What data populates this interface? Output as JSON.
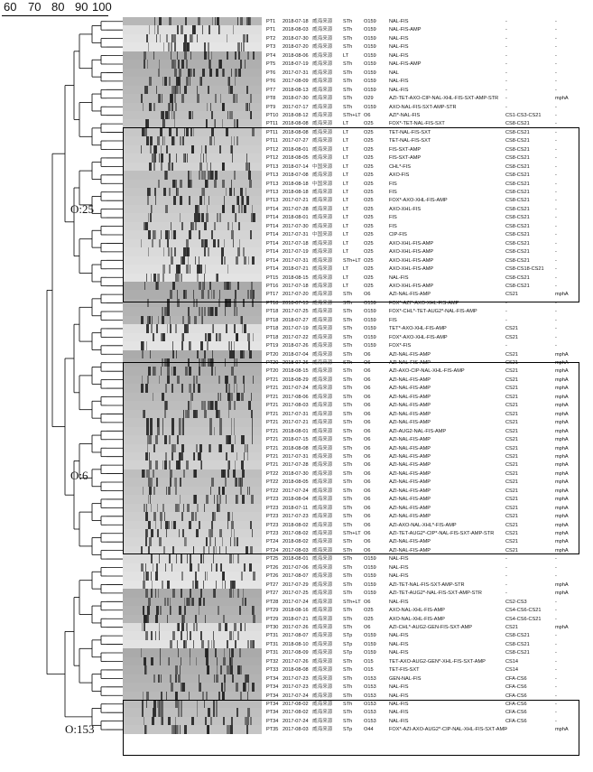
{
  "scale": {
    "ticks": [
      "60",
      "70",
      "80",
      "90",
      "100"
    ]
  },
  "cluster_labels": [
    "O:25",
    "O:6",
    "O:153"
  ],
  "rows": [
    {
      "pt": "PT1",
      "date": "2018-07-18",
      "loc": "威海来源",
      "st": "STh",
      "o": "O159",
      "res": "NAL-FIS",
      "cs": "-",
      "gene": "-"
    },
    {
      "pt": "PT1",
      "date": "2018-08-03",
      "loc": "威海来源",
      "st": "STh",
      "o": "O159",
      "res": "NAL-FIS-AMP",
      "cs": "-",
      "gene": "-"
    },
    {
      "pt": "PT2",
      "date": "2018-07-30",
      "loc": "威海来源",
      "st": "STh",
      "o": "O159",
      "res": "NAL-FIS",
      "cs": "-",
      "gene": "-"
    },
    {
      "pt": "PT3",
      "date": "2018-07-20",
      "loc": "威海来源",
      "st": "STh",
      "o": "O159",
      "res": "NAL-FIS",
      "cs": "-",
      "gene": "-"
    },
    {
      "pt": "PT4",
      "date": "2018-08-06",
      "loc": "威海来源",
      "st": "LT",
      "o": "O159",
      "res": "NAL-FIS",
      "cs": "-",
      "gene": "-"
    },
    {
      "pt": "PT5",
      "date": "2018-07-19",
      "loc": "威海来源",
      "st": "STh",
      "o": "O159",
      "res": "NAL-FIS-AMP",
      "cs": "-",
      "gene": "-"
    },
    {
      "pt": "PT6",
      "date": "2017-07-31",
      "loc": "威海来源",
      "st": "STh",
      "o": "O159",
      "res": "NAL",
      "cs": "-",
      "gene": "-"
    },
    {
      "pt": "PT6",
      "date": "2017-08-09",
      "loc": "威海来源",
      "st": "STh",
      "o": "O159",
      "res": "NAL-FIS",
      "cs": "-",
      "gene": "-"
    },
    {
      "pt": "PT7",
      "date": "2018-08-13",
      "loc": "威海来源",
      "st": "STh",
      "o": "O159",
      "res": "NAL-FIS",
      "cs": "-",
      "gene": "-"
    },
    {
      "pt": "PT8",
      "date": "2018-07-30",
      "loc": "威海来源",
      "st": "STh",
      "o": "O29",
      "res": "AZI-TET-AXO-CIP-NAL-XHL-FIS-SXT-AMP-STR",
      "cs": "-",
      "gene": "mphA"
    },
    {
      "pt": "PT9",
      "date": "2017-07-17",
      "loc": "威海来源",
      "st": "STh",
      "o": "O159",
      "res": "AXO-NAL-FIS-SXT-AMP-STR",
      "cs": "-",
      "gene": "-"
    },
    {
      "pt": "PT10",
      "date": "2018-08-12",
      "loc": "威海来源",
      "st": "STh+LT",
      "o": "O6",
      "res": "AZI*-NAL-FIS",
      "cs": "CS1-CS3-CS21",
      "gene": "-"
    },
    {
      "pt": "PT11",
      "date": "2018-08-08",
      "loc": "威海来源",
      "st": "LT",
      "o": "O25",
      "res": "FOX*-TET-NAL-FIS-SXT",
      "cs": "CS8-CS21",
      "gene": "-"
    },
    {
      "pt": "PT11",
      "date": "2018-08-08",
      "loc": "威海来源",
      "st": "LT",
      "o": "O25",
      "res": "TET-NAL-FIS-SXT",
      "cs": "CS8-CS21",
      "gene": "-"
    },
    {
      "pt": "PT11",
      "date": "2017-07-27",
      "loc": "威海来源",
      "st": "LT",
      "o": "O25",
      "res": "TET-NAL-FIS-SXT",
      "cs": "CS8-CS21",
      "gene": "-"
    },
    {
      "pt": "PT12",
      "date": "2018-08-01",
      "loc": "威海来源",
      "st": "LT",
      "o": "O25",
      "res": "FIS-SXT-AMP",
      "cs": "CS8-CS21",
      "gene": "-"
    },
    {
      "pt": "PT12",
      "date": "2018-08-05",
      "loc": "威海来源",
      "st": "LT",
      "o": "O25",
      "res": "FIS-SXT-AMP",
      "cs": "CS8-CS21",
      "gene": "-"
    },
    {
      "pt": "PT13",
      "date": "2018-07-14",
      "loc": "中国来源",
      "st": "LT",
      "o": "O25",
      "res": "CHL*-FIS",
      "cs": "CS8-CS21",
      "gene": "-"
    },
    {
      "pt": "PT13",
      "date": "2018-07-08",
      "loc": "威海来源",
      "st": "LT",
      "o": "O25",
      "res": "AXO-FIS",
      "cs": "CS8-CS21",
      "gene": "-"
    },
    {
      "pt": "PT13",
      "date": "2018-08-18",
      "loc": "中国来源",
      "st": "LT",
      "o": "O25",
      "res": "FIS",
      "cs": "CS8-CS21",
      "gene": "-"
    },
    {
      "pt": "PT13",
      "date": "2018-08-18",
      "loc": "威海来源",
      "st": "LT",
      "o": "O25",
      "res": "FIS",
      "cs": "CS8-CS21",
      "gene": "-"
    },
    {
      "pt": "PT13",
      "date": "2017-07-21",
      "loc": "威海来源",
      "st": "LT",
      "o": "O25",
      "res": "FOX*-AXO-XHL-FIS-AMP",
      "cs": "CS8-CS21",
      "gene": "-"
    },
    {
      "pt": "PT14",
      "date": "2017-07-28",
      "loc": "威海来源",
      "st": "LT",
      "o": "O25",
      "res": "AXO-XHL-FIS",
      "cs": "CS8-CS21",
      "gene": "-"
    },
    {
      "pt": "PT14",
      "date": "2018-08-01",
      "loc": "威海来源",
      "st": "LT",
      "o": "O25",
      "res": "FIS",
      "cs": "CS8-CS21",
      "gene": "-"
    },
    {
      "pt": "PT14",
      "date": "2017-07-30",
      "loc": "威海来源",
      "st": "LT",
      "o": "O25",
      "res": "FIS",
      "cs": "CS8-CS21",
      "gene": "-"
    },
    {
      "pt": "PT14",
      "date": "2017-07-31",
      "loc": "中国来源",
      "st": "LT",
      "o": "O25",
      "res": "CIP-FIS",
      "cs": "CS8-CS21",
      "gene": "-"
    },
    {
      "pt": "PT14",
      "date": "2017-07-18",
      "loc": "威海来源",
      "st": "LT",
      "o": "O25",
      "res": "AXO-XHL-FIS-AMP",
      "cs": "CS8-CS21",
      "gene": "-"
    },
    {
      "pt": "PT14",
      "date": "2017-07-19",
      "loc": "威海来源",
      "st": "LT",
      "o": "O25",
      "res": "AXO-XHL-FIS-AMP",
      "cs": "CS8-CS21",
      "gene": "-"
    },
    {
      "pt": "PT14",
      "date": "2017-07-31",
      "loc": "威海来源",
      "st": "STh+LT",
      "o": "O25",
      "res": "AXO-XHL-FIS-AMP",
      "cs": "CS8-CS21",
      "gene": "-"
    },
    {
      "pt": "PT14",
      "date": "2018-07-21",
      "loc": "威海来源",
      "st": "LT",
      "o": "O25",
      "res": "AXO-XHL-FIS-AMP",
      "cs": "CS8-CS18-CS21",
      "gene": "-"
    },
    {
      "pt": "PT15",
      "date": "2018-08-15",
      "loc": "威海来源",
      "st": "LT",
      "o": "O25",
      "res": "NAL-FIS",
      "cs": "CS8-CS21",
      "gene": "-"
    },
    {
      "pt": "PT16",
      "date": "2017-07-18",
      "loc": "威海来源",
      "st": "LT",
      "o": "O25",
      "res": "AXO-XHL-FIS-AMP",
      "cs": "CS8-CS21",
      "gene": "-"
    },
    {
      "pt": "PT17",
      "date": "2017-07-20",
      "loc": "威海来源",
      "st": "STh",
      "o": "O6",
      "res": "AZI-NAL-FIS-AMP",
      "cs": "CS21",
      "gene": "mphA"
    },
    {
      "pt": "PT18",
      "date": "2018-07-13",
      "loc": "威海来源",
      "st": "STh",
      "o": "O159",
      "res": "FOX*-AZI*-AXO-XHL-FIS-AMP",
      "cs": "-",
      "gene": "-"
    },
    {
      "pt": "PT18",
      "date": "2017-07-25",
      "loc": "威海来源",
      "st": "STh",
      "o": "O159",
      "res": "FOX*-CHL*-TET-AUG2*-NAL-FIS-AMP",
      "cs": "-",
      "gene": "-"
    },
    {
      "pt": "PT18",
      "date": "2018-07-27",
      "loc": "威海来源",
      "st": "STh",
      "o": "O159",
      "res": "FIS",
      "cs": "-",
      "gene": "-"
    },
    {
      "pt": "PT18",
      "date": "2017-07-19",
      "loc": "威海来源",
      "st": "STh",
      "o": "O159",
      "res": "TET*-AXO-XHL-FIS-AMP",
      "cs": "CS21",
      "gene": "-"
    },
    {
      "pt": "PT18",
      "date": "2017-07-22",
      "loc": "威海来源",
      "st": "STh",
      "o": "O159",
      "res": "FOX*-AXO-XHL-FIS-AMP",
      "cs": "CS21",
      "gene": "-"
    },
    {
      "pt": "PT19",
      "date": "2018-07-26",
      "loc": "威海来源",
      "st": "STh",
      "o": "O159",
      "res": "FOX*-FIS",
      "cs": "-",
      "gene": "-"
    },
    {
      "pt": "PT20",
      "date": "2018-07-04",
      "loc": "威海来源",
      "st": "STh",
      "o": "O6",
      "res": "AZI-NAL-FIS-AMP",
      "cs": "CS21",
      "gene": "mphA"
    },
    {
      "pt": "PT20",
      "date": "2018-07-26",
      "loc": "威海来源",
      "st": "STh",
      "o": "O6",
      "res": "AZI-NAL-FIS-AMP",
      "cs": "CS21",
      "gene": "mphA"
    },
    {
      "pt": "PT20",
      "date": "2018-08-15",
      "loc": "威海来源",
      "st": "STh",
      "o": "O6",
      "res": "AZI-AXO-CIP-NAL-XHL-FIS-AMP",
      "cs": "CS21",
      "gene": "mphA"
    },
    {
      "pt": "PT21",
      "date": "2018-08-29",
      "loc": "威海来源",
      "st": "STh",
      "o": "O6",
      "res": "AZI-NAL-FIS-AMP",
      "cs": "CS21",
      "gene": "mphA"
    },
    {
      "pt": "PT21",
      "date": "2017-07-24",
      "loc": "威海来源",
      "st": "STh",
      "o": "O6",
      "res": "AZI-NAL-FIS-AMP",
      "cs": "CS21",
      "gene": "mphA"
    },
    {
      "pt": "PT21",
      "date": "2017-08-06",
      "loc": "威海来源",
      "st": "STh",
      "o": "O6",
      "res": "AZI-NAL-FIS-AMP",
      "cs": "CS21",
      "gene": "mphA"
    },
    {
      "pt": "PT21",
      "date": "2017-08-03",
      "loc": "威海来源",
      "st": "STh",
      "o": "O6",
      "res": "AZI-NAL-FIS-AMP",
      "cs": "CS21",
      "gene": "mphA"
    },
    {
      "pt": "PT21",
      "date": "2017-07-31",
      "loc": "威海来源",
      "st": "STh",
      "o": "O6",
      "res": "AZI-NAL-FIS-AMP",
      "cs": "CS21",
      "gene": "mphA"
    },
    {
      "pt": "PT21",
      "date": "2017-07-21",
      "loc": "威海来源",
      "st": "STh",
      "o": "O6",
      "res": "AZI-NAL-FIS-AMP",
      "cs": "CS21",
      "gene": "mphA"
    },
    {
      "pt": "PT21",
      "date": "2018-08-01",
      "loc": "威海来源",
      "st": "STh",
      "o": "O6",
      "res": "AZI-AUG2-NAL-FIS-AMP",
      "cs": "CS21",
      "gene": "mphA"
    },
    {
      "pt": "PT21",
      "date": "2018-07-15",
      "loc": "威海来源",
      "st": "STh",
      "o": "O6",
      "res": "AZI-NAL-FIS-AMP",
      "cs": "CS21",
      "gene": "mphA"
    },
    {
      "pt": "PT21",
      "date": "2018-08-08",
      "loc": "威海来源",
      "st": "STh",
      "o": "O6",
      "res": "AZI-NAL-FIS-AMP",
      "cs": "CS21",
      "gene": "mphA"
    },
    {
      "pt": "PT21",
      "date": "2017-07-31",
      "loc": "威海来源",
      "st": "STh",
      "o": "O6",
      "res": "AZI-NAL-FIS-AMP",
      "cs": "CS21",
      "gene": "mphA"
    },
    {
      "pt": "PT21",
      "date": "2017-07-28",
      "loc": "威海来源",
      "st": "STh",
      "o": "O6",
      "res": "AZI-NAL-FIS-AMP",
      "cs": "CS21",
      "gene": "mphA"
    },
    {
      "pt": "PT22",
      "date": "2018-07-30",
      "loc": "威海来源",
      "st": "STh",
      "o": "O6",
      "res": "AZI-NAL-FIS-AMP",
      "cs": "CS21",
      "gene": "mphA"
    },
    {
      "pt": "PT22",
      "date": "2018-08-05",
      "loc": "威海来源",
      "st": "STh",
      "o": "O6",
      "res": "AZI-NAL-FIS-AMP",
      "cs": "CS21",
      "gene": "mphA"
    },
    {
      "pt": "PT22",
      "date": "2017-07-24",
      "loc": "威海来源",
      "st": "STh",
      "o": "O6",
      "res": "AZI-NAL-FIS-AMP",
      "cs": "CS21",
      "gene": "mphA"
    },
    {
      "pt": "PT23",
      "date": "2018-08-04",
      "loc": "威海来源",
      "st": "STh",
      "o": "O6",
      "res": "AZI-NAL-FIS-AMP",
      "cs": "CS21",
      "gene": "mphA"
    },
    {
      "pt": "PT23",
      "date": "2018-07-11",
      "loc": "威海来源",
      "st": "STh",
      "o": "O6",
      "res": "AZI-NAL-FIS-AMP",
      "cs": "CS21",
      "gene": "mphA"
    },
    {
      "pt": "PT23",
      "date": "2017-07-23",
      "loc": "威海来源",
      "st": "STh",
      "o": "O6",
      "res": "AZI-NAL-FIS-AMP",
      "cs": "CS21",
      "gene": "mphA"
    },
    {
      "pt": "PT23",
      "date": "2018-08-02",
      "loc": "威海来源",
      "st": "STh",
      "o": "O6",
      "res": "AZI-AXO-NAL-XHL*-FIS-AMP",
      "cs": "CS21",
      "gene": "mphA"
    },
    {
      "pt": "PT23",
      "date": "2017-08-02",
      "loc": "威海来源",
      "st": "STh+LT",
      "o": "O6",
      "res": "AZI-TET-AUG2*-CIP*-NAL-FIS-SXT-AMP-STR",
      "cs": "CS21",
      "gene": "mphA"
    },
    {
      "pt": "PT24",
      "date": "2018-08-02",
      "loc": "威海来源",
      "st": "STh",
      "o": "O6",
      "res": "AZI-NAL-FIS-AMP",
      "cs": "CS21",
      "gene": "mphA"
    },
    {
      "pt": "PT24",
      "date": "2017-08-03",
      "loc": "威海来源",
      "st": "STh",
      "o": "O6",
      "res": "AZI-NAL-FIS-AMP",
      "cs": "CS21",
      "gene": "mphA"
    },
    {
      "pt": "PT25",
      "date": "2018-08-01",
      "loc": "威海来源",
      "st": "STh",
      "o": "O159",
      "res": "NAL-FIS",
      "cs": "-",
      "gene": "-"
    },
    {
      "pt": "PT26",
      "date": "2017-07-06",
      "loc": "威海来源",
      "st": "STh",
      "o": "O159",
      "res": "NAL-FIS",
      "cs": "-",
      "gene": "-"
    },
    {
      "pt": "PT26",
      "date": "2017-08-07",
      "loc": "威海来源",
      "st": "STh",
      "o": "O159",
      "res": "NAL-FIS",
      "cs": "-",
      "gene": "-"
    },
    {
      "pt": "PT27",
      "date": "2017-07-29",
      "loc": "威海来源",
      "st": "STh",
      "o": "O159",
      "res": "AZI-TET-NAL-FIS-SXT-AMP-STR",
      "cs": "-",
      "gene": "mphA"
    },
    {
      "pt": "PT27",
      "date": "2017-07-25",
      "loc": "威海来源",
      "st": "STh",
      "o": "O159",
      "res": "AZI-TET-AUG2*-NAL-FIS-SXT-AMP-STR",
      "cs": "-",
      "gene": "mphA"
    },
    {
      "pt": "PT28",
      "date": "2017-07-24",
      "loc": "威海来源",
      "st": "STh+LT",
      "o": "O6",
      "res": "NAL-FIS",
      "cs": "CS2-CS3",
      "gene": "-"
    },
    {
      "pt": "PT29",
      "date": "2018-08-16",
      "loc": "威海来源",
      "st": "STh",
      "o": "O25",
      "res": "AXO-NAL-XHL-FIS-AMP",
      "cs": "CS4-CS6-CS21",
      "gene": "-"
    },
    {
      "pt": "PT29",
      "date": "2018-07-21",
      "loc": "威海来源",
      "st": "STh",
      "o": "O25",
      "res": "AXO-NAL-XHL-FIS-AMP",
      "cs": "CS4-CS6-CS21",
      "gene": "-"
    },
    {
      "pt": "PT30",
      "date": "2017-07-26",
      "loc": "威海来源",
      "st": "STh",
      "o": "O6",
      "res": "AZI-CHL*-AUG2-GEN-FIS-SXT-AMP",
      "cs": "CS21",
      "gene": "mphA"
    },
    {
      "pt": "PT31",
      "date": "2017-08-07",
      "loc": "威海来源",
      "st": "STp",
      "o": "O159",
      "res": "NAL-FIS",
      "cs": "CS8-CS21",
      "gene": "-"
    },
    {
      "pt": "PT31",
      "date": "2018-08-10",
      "loc": "威海来源",
      "st": "STp",
      "o": "O159",
      "res": "NAL-FIS",
      "cs": "CS8-CS21",
      "gene": "-"
    },
    {
      "pt": "PT31",
      "date": "2017-08-09",
      "loc": "威海来源",
      "st": "STp",
      "o": "O159",
      "res": "NAL-FIS",
      "cs": "CS8-CS21",
      "gene": "-"
    },
    {
      "pt": "PT32",
      "date": "2017-07-26",
      "loc": "威海来源",
      "st": "STh",
      "o": "O15",
      "res": "TET-AXO-AUG2-GEN*-XHL-FIS-SXT-AMP",
      "cs": "CS14",
      "gene": "-"
    },
    {
      "pt": "PT33",
      "date": "2018-08-08",
      "loc": "威海来源",
      "st": "STh",
      "o": "O15",
      "res": "TET-FIS-SXT",
      "cs": "CS14",
      "gene": "-"
    },
    {
      "pt": "PT34",
      "date": "2017-07-23",
      "loc": "威海来源",
      "st": "STh",
      "o": "O153",
      "res": "GEN-NAL-FIS",
      "cs": "CFA-CS6",
      "gene": "-"
    },
    {
      "pt": "PT34",
      "date": "2017-07-23",
      "loc": "威海来源",
      "st": "STh",
      "o": "O153",
      "res": "NAL-FIS",
      "cs": "CFA-CS6",
      "gene": "-"
    },
    {
      "pt": "PT34",
      "date": "2017-07-24",
      "loc": "威海来源",
      "st": "STh",
      "o": "O153",
      "res": "NAL-FIS",
      "cs": "CFA-CS6",
      "gene": "-"
    },
    {
      "pt": "PT34",
      "date": "2017-08-02",
      "loc": "威海来源",
      "st": "STh",
      "o": "O153",
      "res": "NAL-FIS",
      "cs": "CFA-CS6",
      "gene": "-"
    },
    {
      "pt": "PT34",
      "date": "2017-08-02",
      "loc": "威海来源",
      "st": "STh",
      "o": "O153",
      "res": "NAL-FIS",
      "cs": "CFA-CS6",
      "gene": "-"
    },
    {
      "pt": "PT34",
      "date": "2017-07-24",
      "loc": "威海来源",
      "st": "STh",
      "o": "O153",
      "res": "NAL-FIS",
      "cs": "CFA-CS6",
      "gene": "-"
    },
    {
      "pt": "PT35",
      "date": "2017-08-03",
      "loc": "威海来源",
      "st": "STp",
      "o": "O44",
      "res": "FOX*-AZI-AXO-AUG2*-CIP-NAL-XHL-FIS-SXT-AMP",
      "cs": "-",
      "gene": "mphA"
    }
  ]
}
